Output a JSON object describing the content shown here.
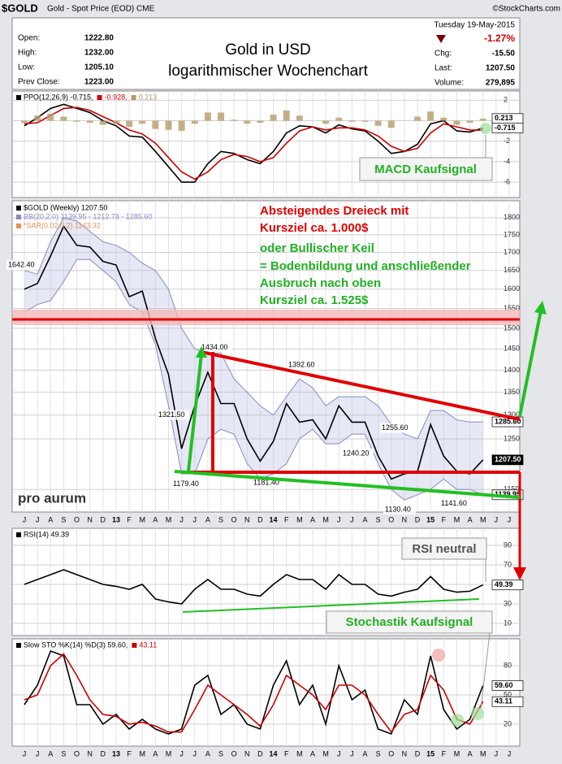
{
  "header": {
    "symbol": "$GOLD",
    "description": "Gold - Spot Price (EOD) CME",
    "source": "©StockCharts.com",
    "date": "Tuesday  19-May-2015",
    "title_lines": [
      "Gold in USD",
      "logarithmischer Wochenchart"
    ],
    "stats_left": [
      [
        "Open:",
        "1222.80"
      ],
      [
        "High:",
        "1232.00"
      ],
      [
        "Low:",
        "1205.10"
      ],
      [
        "Prev Close:",
        "1223.00"
      ]
    ],
    "change_pct": "-1.27%",
    "stats_right": [
      [
        "Chg:",
        "-15.50"
      ],
      [
        "Last:",
        "1207.50"
      ],
      [
        "Volume:",
        "279,895"
      ]
    ],
    "logo": "pro aurum"
  },
  "annotations": {
    "red": [
      "Absteigendes Dreieck mit",
      "Kursziel ca. 1.000$"
    ],
    "green": [
      "oder Bullischer Keil",
      "= Bodenbildung und anschließender",
      "Ausbruch nach oben",
      "Kursziel ca. 1.525$"
    ],
    "macd": "MACD Kaufsignal",
    "rsi": "RSI neutral",
    "sto": "Stochastik Kaufsignal"
  },
  "chart_data": [
    {
      "type": "line",
      "legend": [
        "PPO(12,26,9) -0.715,",
        "-0.928,",
        "0.213"
      ],
      "ylim": [
        -7.5,
        2.9
      ],
      "yticks": [
        2,
        0,
        -2,
        -4,
        -6
      ],
      "grid": true,
      "series": [
        {
          "color": "#000000",
          "values": [
            -0.5,
            0.3,
            1.2,
            1.6,
            1.2,
            0.8,
            0,
            -0.5,
            -1.5,
            -1.6,
            -3,
            -4.5,
            -6,
            -6,
            -4.2,
            -3,
            -3.2,
            -3.8,
            -4.2,
            -3,
            -1.2,
            -0.5,
            -0.6,
            -1.2,
            -0.4,
            -0.8,
            -1,
            -2,
            -3.2,
            -3,
            -2.3,
            -0.3,
            0,
            -1,
            -1.1,
            -0.715,
            null,
            null
          ]
        },
        {
          "color": "#cc0000",
          "values": [
            -0.3,
            -0.2,
            0.5,
            1.2,
            1.3,
            1,
            0.4,
            -0.2,
            -0.9,
            -1.3,
            -2.2,
            -3.6,
            -5,
            -5.7,
            -5,
            -3.8,
            -3.3,
            -3.5,
            -4,
            -3.6,
            -2.2,
            -1,
            -0.6,
            -0.9,
            -0.7,
            -0.7,
            -0.9,
            -1.5,
            -2.5,
            -3,
            -2.7,
            -1.2,
            -0.3,
            -0.6,
            -0.9,
            -0.928,
            null,
            null
          ]
        },
        {
          "color": "#b89b6a",
          "style": "histogram",
          "values": [
            -0.2,
            0.5,
            0.7,
            0.4,
            -0.1,
            -0.2,
            -0.4,
            -0.3,
            -0.6,
            -0.3,
            -0.8,
            -0.9,
            -1,
            -0.3,
            0.8,
            0.8,
            0.1,
            -0.3,
            -0.2,
            0.6,
            1,
            0.5,
            0,
            -0.3,
            0.3,
            -0.1,
            -0.1,
            -0.5,
            -0.7,
            0,
            0.4,
            0.9,
            0.3,
            -0.4,
            -0.2,
            0.213,
            null,
            null
          ]
        }
      ],
      "end_labels": [
        0.213,
        -0.715
      ]
    },
    {
      "type": "line",
      "log_scale": true,
      "legend": [
        "$GOLD (Weekly) 1207.50",
        "BB(20,2.0) 1139.95 - 1212.78 - 1285.60",
        "*SAR(0.02,0.2) 1143.32"
      ],
      "categories": [
        "J",
        "J",
        "A",
        "S",
        "O",
        "N",
        "D",
        "13",
        "F",
        "M",
        "A",
        "M",
        "J",
        "J",
        "A",
        "S",
        "O",
        "N",
        "D",
        "14",
        "F",
        "M",
        "A",
        "M",
        "J",
        "J",
        "A",
        "S",
        "O",
        "N",
        "D",
        "15",
        "F",
        "M",
        "A",
        "M",
        "J",
        "J"
      ],
      "ylim": [
        1108,
        1851
      ],
      "yticks": [
        1150,
        1250,
        1300,
        1350,
        1400,
        1450,
        1500,
        1550,
        1600,
        1650,
        1700,
        1750,
        1800
      ],
      "grid": true,
      "series": [
        {
          "color": "#000000",
          "values": [
            1600,
            1615,
            1690,
            1775,
            1720,
            1715,
            1675,
            1665,
            1580,
            1595,
            1475,
            1390,
            1230,
            1320,
            1395,
            1325,
            1325,
            1250,
            1205,
            1245,
            1325,
            1285,
            1290,
            1250,
            1320,
            1285,
            1285,
            1215,
            1170,
            1180,
            1185,
            1280,
            1215,
            1185,
            1180,
            1207.5,
            null,
            null
          ]
        },
        {
          "color": "#8a8ac0",
          "style": "band",
          "values": [
            1650,
            1640,
            1730,
            1800,
            1790,
            1760,
            1730,
            1720,
            1700,
            1670,
            1650,
            1600,
            1500,
            1450,
            1440,
            1440,
            1380,
            1350,
            1320,
            1300,
            1340,
            1380,
            1360,
            1320,
            1340,
            1340,
            1340,
            1320,
            1280,
            1260,
            1250,
            1310,
            1310,
            1290,
            1285,
            1285.6,
            null,
            null
          ]
        },
        {
          "color": "#8a8ac0",
          "style": "band",
          "values": [
            1540,
            1560,
            1570,
            1620,
            1680,
            1680,
            1650,
            1620,
            1560,
            1540,
            1460,
            1320,
            1180,
            1180,
            1250,
            1270,
            1260,
            1200,
            1170,
            1180,
            1200,
            1250,
            1270,
            1240,
            1240,
            1260,
            1260,
            1200,
            1150,
            1130,
            1140,
            1150,
            1170,
            1150,
            1150,
            1139.95,
            null,
            null
          ]
        }
      ],
      "level_labels": [
        {
          "value": 1642.4,
          "label": "1642.40"
        },
        {
          "value": 1434,
          "label": "1434.00"
        },
        {
          "value": 1392.6,
          "label": "1392.60"
        },
        {
          "value": 1321.5,
          "label": "1321.50"
        },
        {
          "value": 1255.6,
          "label": "1255.60"
        },
        {
          "value": 1240.2,
          "label": "1240.20"
        },
        {
          "value": 1179.4,
          "label": "1179.40"
        },
        {
          "value": 1181.4,
          "label": "1181.40"
        },
        {
          "value": 1130.4,
          "label": "1130.40"
        },
        {
          "value": 1141.6,
          "label": "1141.60"
        }
      ],
      "end_labels": [
        {
          "value": 1285.6,
          "label": "1285.60"
        },
        {
          "value": 1207.5,
          "label": "1207.50"
        },
        {
          "value": 1139.95,
          "label": "1139.95"
        }
      ]
    },
    {
      "type": "line",
      "legend": [
        "RSI(14) 49.39"
      ],
      "ylim": [
        0,
        100
      ],
      "yticks": [
        10,
        30,
        50,
        70,
        90
      ],
      "grid": true,
      "series": [
        {
          "color": "#000000",
          "values": [
            50,
            55,
            60,
            65,
            60,
            55,
            50,
            48,
            45,
            50,
            35,
            32,
            30,
            45,
            55,
            45,
            45,
            40,
            38,
            50,
            60,
            55,
            55,
            45,
            60,
            50,
            50,
            40,
            38,
            42,
            45,
            58,
            45,
            42,
            43,
            49.39,
            null,
            null
          ]
        }
      ],
      "end_labels": [
        49.39
      ]
    },
    {
      "type": "line",
      "legend": [
        "Slow STO %K(14) %D(3) 59.60,",
        "43.11"
      ],
      "categories": [
        "J",
        "J",
        "A",
        "S",
        "O",
        "N",
        "D",
        "13",
        "F",
        "M",
        "A",
        "M",
        "J",
        "J",
        "A",
        "S",
        "O",
        "N",
        "D",
        "14",
        "F",
        "M",
        "A",
        "M",
        "J",
        "J",
        "A",
        "S",
        "O",
        "N",
        "D",
        "15",
        "F",
        "M",
        "A",
        "M",
        "J",
        "J"
      ],
      "ylim": [
        0,
        100
      ],
      "yticks": [
        20,
        50,
        80
      ],
      "grid": true,
      "series": [
        {
          "color": "#000000",
          "values": [
            40,
            60,
            95,
            90,
            40,
            40,
            20,
            30,
            15,
            25,
            15,
            10,
            15,
            60,
            70,
            30,
            40,
            20,
            15,
            60,
            85,
            40,
            60,
            20,
            80,
            45,
            55,
            15,
            10,
            45,
            30,
            90,
            35,
            15,
            25,
            59.6,
            null,
            null
          ]
        },
        {
          "color": "#cc0000",
          "values": [
            45,
            50,
            80,
            92,
            70,
            45,
            30,
            28,
            20,
            22,
            18,
            12,
            12,
            35,
            60,
            50,
            40,
            30,
            18,
            40,
            70,
            60,
            50,
            35,
            60,
            60,
            50,
            30,
            12,
            30,
            35,
            70,
            55,
            25,
            20,
            43.11,
            null,
            null
          ]
        }
      ],
      "end_labels": [
        {
          "value": 59.6,
          "label": "59.60"
        },
        43.11
      ]
    }
  ]
}
